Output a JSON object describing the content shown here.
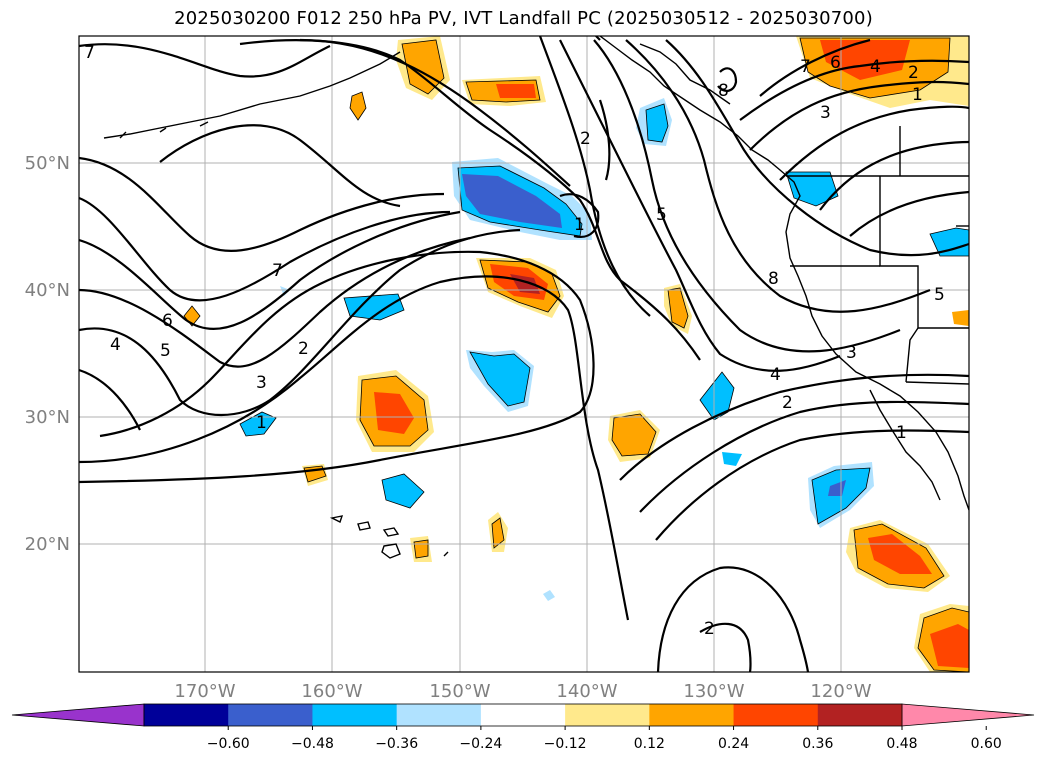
{
  "title": "2025030200 F012 250 hPa PV, IVT Landfall PC (2025030512 - 2025030700)",
  "lat_labels": [
    "50°N",
    "40°N",
    "30°N",
    "20°N"
  ],
  "lon_labels": [
    "170°W",
    "160°W",
    "150°W",
    "140°W",
    "130°W",
    "120°W"
  ],
  "colorbar": {
    "tick_labels": [
      "−0.60",
      "−0.48",
      "−0.36",
      "−0.24",
      "−0.12",
      "0.12",
      "0.24",
      "0.36",
      "0.48",
      "0.60"
    ],
    "colors": [
      "#9933cc",
      "#000099",
      "#3a5fcd",
      "#00bfff",
      "#b0e2ff",
      "#ffffff",
      "#ffe98c",
      "#ffa500",
      "#ff4500",
      "#b22222",
      "#ff88aa"
    ]
  },
  "contour_labels": [
    "7",
    "7",
    "6",
    "5",
    "4",
    "3",
    "2",
    "1",
    "2",
    "5",
    "1",
    "8",
    "7",
    "6",
    "4",
    "2",
    "1",
    "3",
    "8",
    "5",
    "4",
    "3",
    "2",
    "1",
    "2"
  ]
}
